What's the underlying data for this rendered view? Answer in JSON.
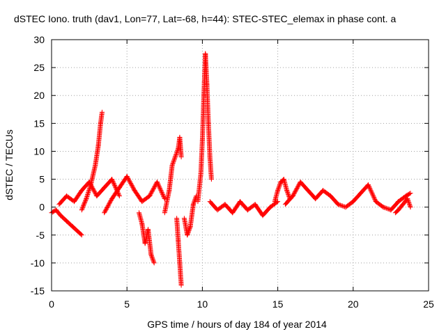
{
  "chart_data": {
    "type": "scatter",
    "title": "dSTEC Iono. truth (dav1, Lon=77, Lat=-68, h=44): STEC-STEC_elemax in phase cont. a",
    "xlabel": "GPS time / hours of day 184 of year 2014",
    "ylabel": "dSTEC  / TECUs",
    "xlim": [
      0,
      25
    ],
    "ylim": [
      -15,
      30
    ],
    "xticks": [
      0,
      5,
      10,
      15,
      20,
      25
    ],
    "yticks": [
      -15,
      -10,
      -5,
      0,
      5,
      10,
      15,
      20,
      25,
      30
    ],
    "grid": true,
    "legend": "none",
    "marker": "+",
    "color": "#ff0000",
    "arcs": [
      {
        "x": [
          0.0,
          0.3,
          0.6,
          1.0,
          1.4,
          1.8,
          2.0
        ],
        "y": [
          -1.0,
          -0.5,
          -1.5,
          -2.5,
          -3.5,
          -4.5,
          -5.0
        ]
      },
      {
        "x": [
          2.0,
          2.3,
          2.6,
          2.9,
          3.1,
          3.25,
          3.35
        ],
        "y": [
          -0.5,
          1.5,
          4.0,
          7.5,
          11.0,
          15.0,
          17.0
        ]
      },
      {
        "x": [
          0.5,
          1.0,
          1.5,
          2.0,
          2.5,
          3.0,
          3.5,
          4.0,
          4.5
        ],
        "y": [
          0.5,
          2.0,
          1.0,
          3.0,
          4.5,
          2.0,
          3.5,
          5.0,
          2.0
        ]
      },
      {
        "x": [
          3.5,
          4.0,
          4.5,
          5.0,
          5.5,
          6.0,
          6.5,
          7.0,
          7.5
        ],
        "y": [
          -1.0,
          1.5,
          3.5,
          5.5,
          3.0,
          1.0,
          2.0,
          4.5,
          1.5
        ]
      },
      {
        "x": [
          5.8,
          6.0,
          6.2,
          6.4,
          6.6,
          6.8
        ],
        "y": [
          -1.0,
          -3.0,
          -6.5,
          -4.0,
          -8.5,
          -10.0
        ]
      },
      {
        "x": [
          7.5,
          7.8,
          8.0,
          8.2,
          8.4,
          8.5,
          8.6
        ],
        "y": [
          -1.0,
          3.0,
          7.5,
          9.0,
          10.5,
          12.5,
          9.0
        ]
      },
      {
        "x": [
          8.3,
          8.4,
          8.5,
          8.6
        ],
        "y": [
          -2.0,
          -6.0,
          -10.0,
          -14.0
        ]
      },
      {
        "x": [
          8.8,
          9.0,
          9.2,
          9.4,
          9.6
        ],
        "y": [
          -2.0,
          -5.0,
          -3.5,
          0.5,
          2.0
        ]
      },
      {
        "x": [
          9.7,
          9.9,
          10.0,
          10.1,
          10.2,
          10.3,
          10.4,
          10.5,
          10.6
        ],
        "y": [
          1.0,
          6.0,
          12.0,
          20.0,
          27.5,
          22.0,
          15.0,
          9.0,
          5.0
        ]
      },
      {
        "x": [
          10.5,
          11.0,
          11.5,
          12.0,
          12.5,
          13.0,
          13.5,
          14.0,
          14.5,
          15.0
        ],
        "y": [
          1.0,
          -0.5,
          0.5,
          -1.0,
          1.0,
          -0.5,
          0.5,
          -1.5,
          0.0,
          1.0
        ]
      },
      {
        "x": [
          14.8,
          15.0,
          15.2,
          15.4,
          15.6,
          15.8
        ],
        "y": [
          1.0,
          3.0,
          4.5,
          5.0,
          3.0,
          1.5
        ]
      },
      {
        "x": [
          15.5,
          16.0,
          16.5,
          17.0,
          17.5,
          18.0,
          18.5,
          19.0
        ],
        "y": [
          0.5,
          2.0,
          4.5,
          3.0,
          1.5,
          3.0,
          2.0,
          0.5
        ]
      },
      {
        "x": [
          19.0,
          19.5,
          20.0,
          20.5,
          21.0,
          21.5,
          22.0,
          22.5,
          23.0,
          23.5,
          23.8
        ],
        "y": [
          0.5,
          0.0,
          1.0,
          2.5,
          4.0,
          1.0,
          0.0,
          -0.5,
          1.0,
          2.0,
          2.5
        ]
      },
      {
        "x": [
          22.8,
          23.0,
          23.3,
          23.6,
          23.8
        ],
        "y": [
          -1.0,
          -0.5,
          0.5,
          1.5,
          0.0
        ]
      }
    ]
  }
}
